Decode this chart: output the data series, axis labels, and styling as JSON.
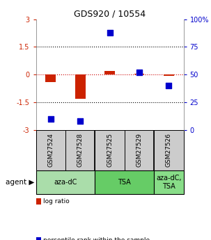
{
  "title": "GDS920 / 10554",
  "samples": [
    "GSM27524",
    "GSM27528",
    "GSM27525",
    "GSM27529",
    "GSM27526"
  ],
  "log_ratio": [
    -0.42,
    -1.3,
    0.2,
    0.05,
    -0.05
  ],
  "percentile": [
    10,
    8,
    88,
    52,
    40
  ],
  "ylim_left": [
    -3,
    3
  ],
  "ylim_right": [
    0,
    100
  ],
  "yticks_left": [
    -3,
    -1.5,
    0,
    1.5,
    3
  ],
  "ytick_labels_left": [
    "-3",
    "-1.5",
    "0",
    "1.5",
    "3"
  ],
  "yticks_right": [
    0,
    25,
    50,
    75,
    100
  ],
  "ytick_labels_right": [
    "0",
    "25",
    "50",
    "75",
    "100%"
  ],
  "hlines": [
    -1.5,
    0,
    1.5
  ],
  "bar_color": "#cc2200",
  "dot_color": "#0000cc",
  "legend_items": [
    {
      "label": "log ratio",
      "color": "#cc2200"
    },
    {
      "label": "percentile rank within the sample",
      "color": "#0000cc"
    }
  ],
  "agent_label": "agent",
  "background_color": "#ffffff",
  "plot_bg": "#ffffff",
  "tick_label_color_left": "#cc2200",
  "tick_label_color_right": "#0000cc",
  "agent_groups": [
    {
      "label": "aza-dC",
      "xmin": -0.5,
      "xmax": 1.5,
      "color": "#aaddaa"
    },
    {
      "label": "TSA",
      "xmin": 1.5,
      "xmax": 3.5,
      "color": "#66cc66"
    },
    {
      "label": "aza-dC,\nTSA",
      "xmin": 3.5,
      "xmax": 4.5,
      "color": "#88dd88"
    }
  ]
}
